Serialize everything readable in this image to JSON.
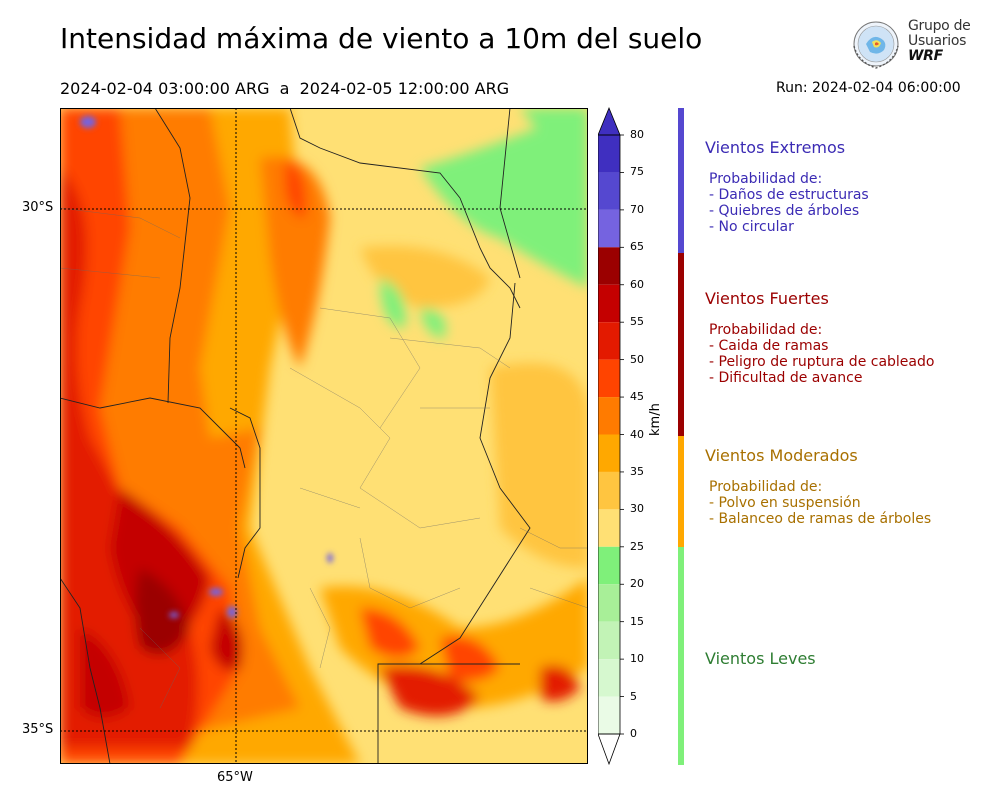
{
  "title": "Intensidad máxima de viento a 10m del suelo",
  "period": "2024-02-04 03:00:00 ARG  a  2024-02-05 12:00:00 ARG",
  "run": "Run: 2024-02-04 06:00:00",
  "logo": {
    "line1": "Grupo de",
    "line2": "Usuarios",
    "line3": "WRF"
  },
  "map": {
    "lat_labels": [
      "30°S",
      "35°S"
    ],
    "lon_labels": [
      "65°W"
    ]
  },
  "colorbar": {
    "unit": "km/h",
    "ticks": [
      "80",
      "75",
      "70",
      "65",
      "60",
      "55",
      "50",
      "45",
      "40",
      "35",
      "30",
      "25",
      "20",
      "15",
      "10",
      "5",
      "0"
    ],
    "colors": {
      "0": "#eafbe6",
      "5": "#d6f8cf",
      "10": "#c2f3b6",
      "15": "#a8ef98",
      "20": "#7ff07a",
      "25": "#ffe074",
      "30": "#ffc540",
      "35": "#ffa800",
      "40": "#ff7b00",
      "45": "#ff4400",
      "50": "#e31a00",
      "55": "#c40000",
      "60": "#9b0000",
      "65": "#7563e0",
      "70": "#5548d0",
      "75": "#3f2fc0"
    }
  },
  "categories": [
    {
      "title": "Vientos Extremos",
      "color": "#3b2bb4",
      "lines": [
        "Probabilidad de:",
        "- Daños de estructuras",
        "- Quiebres de árboles",
        "- No circular"
      ]
    },
    {
      "title": "Vientos Fuertes",
      "color": "#9b0000",
      "lines": [
        "Probabilidad de:",
        "- Caida de ramas",
        "- Peligro de ruptura de cableado",
        "- Dificultad de avance"
      ]
    },
    {
      "title": "Vientos Moderados",
      "color": "#a87000",
      "lines": [
        "Probabilidad de:",
        "- Polvo en suspensión",
        "- Balanceo de ramas de árboles"
      ]
    },
    {
      "title": "Vientos Leves",
      "color": "#2e7d32",
      "lines": []
    }
  ]
}
